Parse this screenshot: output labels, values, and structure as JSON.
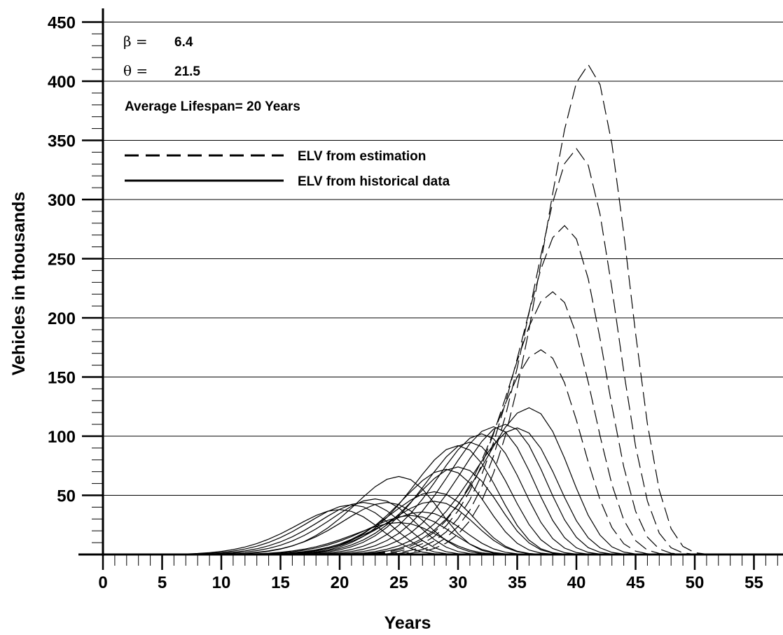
{
  "chart_data": {
    "type": "line",
    "xlabel": "Years",
    "ylabel": "Vehicles in thousands",
    "xlim": [
      0,
      58
    ],
    "ylim": [
      0,
      450
    ],
    "x_ticks": [
      0,
      5,
      10,
      15,
      20,
      25,
      30,
      35,
      40,
      45,
      50,
      55
    ],
    "y_ticks": [
      50,
      100,
      150,
      200,
      250,
      300,
      350,
      400,
      450
    ],
    "x_minor_step": 1,
    "y_minor_step": 10,
    "horizontal_grid": true,
    "legend_position": "top-left",
    "legend": [
      {
        "label": "ELV from estimation",
        "style": "dashed"
      },
      {
        "label": "ELV from historical data",
        "style": "solid"
      }
    ],
    "annotations": [
      {
        "symbol": "β",
        "eq": " = ",
        "value": "6.4"
      },
      {
        "symbol": "θ",
        "eq": " = ",
        "value": "21.5"
      },
      {
        "text": "Average Lifespan= 20 Years"
      }
    ],
    "series_shape": {
      "beta": 6.4,
      "theta": 21.5
    },
    "series": [
      {
        "style": "solid",
        "peak_x": 20,
        "peak": 38
      },
      {
        "style": "solid",
        "peak_x": 21,
        "peak": 42
      },
      {
        "style": "solid",
        "peak_x": 22,
        "peak": 44
      },
      {
        "style": "solid",
        "peak_x": 23,
        "peak": 47
      },
      {
        "style": "solid",
        "peak_x": 24,
        "peak": 44
      },
      {
        "style": "solid",
        "peak_x": 25,
        "peak": 66
      },
      {
        "style": "solid",
        "peak_x": 25,
        "peak": 27
      },
      {
        "style": "solid",
        "peak_x": 26,
        "peak": 33
      },
      {
        "style": "solid",
        "peak_x": 27,
        "peak": 36
      },
      {
        "style": "solid",
        "peak_x": 28,
        "peak": 53
      },
      {
        "style": "solid",
        "peak_x": 28,
        "peak": 45
      },
      {
        "style": "solid",
        "peak_x": 29,
        "peak": 72
      },
      {
        "style": "solid",
        "peak_x": 30,
        "peak": 74
      },
      {
        "style": "solid",
        "peak_x": 30,
        "peak": 92
      },
      {
        "style": "solid",
        "peak_x": 31,
        "peak": 95
      },
      {
        "style": "solid",
        "peak_x": 32,
        "peak": 102
      },
      {
        "style": "solid",
        "peak_x": 33,
        "peak": 108
      },
      {
        "style": "solid",
        "peak_x": 34,
        "peak": 110
      },
      {
        "style": "solid",
        "peak_x": 35,
        "peak": 107
      },
      {
        "style": "solid",
        "peak_x": 36,
        "peak": 124
      },
      {
        "style": "dashed",
        "peak_x": 37,
        "peak": 173
      },
      {
        "style": "dashed",
        "peak_x": 38,
        "peak": 222
      },
      {
        "style": "dashed",
        "peak_x": 39,
        "peak": 278
      },
      {
        "style": "dashed",
        "peak_x": 40,
        "peak": 343
      },
      {
        "style": "dashed",
        "peak_x": 41,
        "peak": 414
      }
    ]
  }
}
